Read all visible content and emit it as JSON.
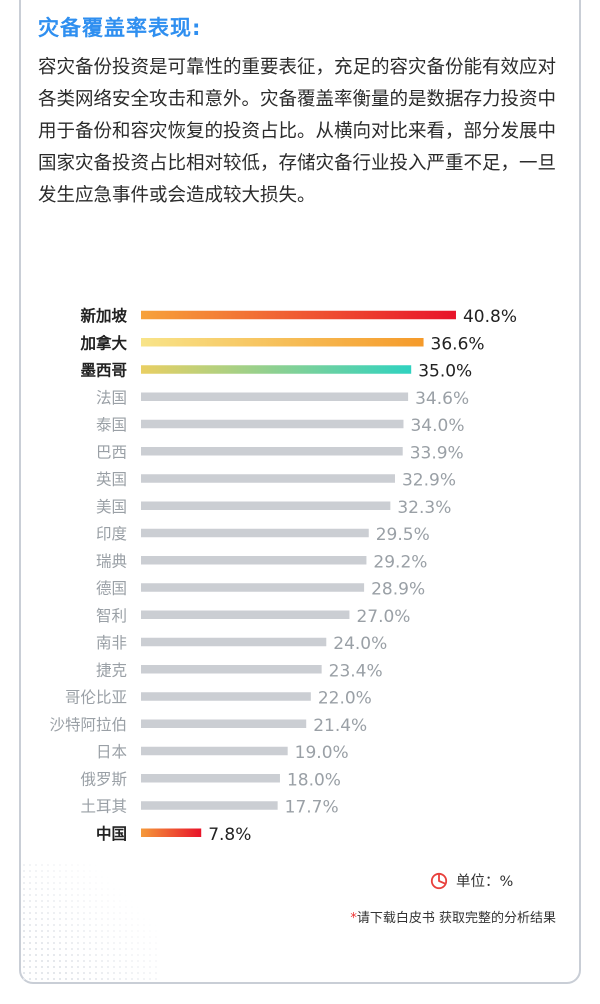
{
  "title": "灾备覆盖率表现:",
  "intro": "容灾备份投资是可靠性的重要表征，充足的容灾备份能有效应对各类网络安全攻击和意外。灾备覆盖率衡量的是数据存力投资中用于备份和容灾恢复的投资占比。从横向对比来看，部分发展中国家灾备投资占比相对较低，存储灾备行业投入严重不足，一旦发生应急事件或会造成较大损失。",
  "unit_label": "单位：%",
  "unit_icon": "pie-chart-icon",
  "footnote": {
    "star": "*",
    "text": "请下载白皮书  获取完整的分析结果"
  },
  "colors": {
    "title": "#2f8ff0",
    "bar_gray": "#cbced3",
    "label_gray": "#9aa0a6",
    "label_dark": "#222222",
    "unit_icon": "#e8403c"
  },
  "chart_data": {
    "type": "bar",
    "orientation": "horizontal",
    "xlim": [
      0,
      45
    ],
    "grid": false,
    "legend": "none",
    "categories": [
      "新加坡",
      "加拿大",
      "墨西哥",
      "法国",
      "泰国",
      "巴西",
      "英国",
      "美国",
      "印度",
      "瑞典",
      "德国",
      "智利",
      "南非",
      "捷克",
      "哥伦比亚",
      "沙特阿拉伯",
      "日本",
      "俄罗斯",
      "土耳其",
      "中国"
    ],
    "values": [
      40.8,
      36.6,
      35.0,
      34.6,
      34.0,
      33.9,
      32.9,
      32.3,
      29.5,
      29.2,
      28.9,
      27.0,
      24.0,
      23.4,
      22.0,
      21.4,
      19.0,
      18.0,
      17.7,
      7.8
    ],
    "value_labels": [
      "40.8%",
      "36.6%",
      "35.0%",
      "34.6%",
      "34.0%",
      "33.9%",
      "32.9%",
      "32.3%",
      "29.5%",
      "29.2%",
      "28.9%",
      "27.0%",
      "24.0%",
      "23.4%",
      "22.0%",
      "21.4%",
      "19.0%",
      "18.0%",
      "17.7%",
      "7.8%"
    ],
    "highlighted": [
      "新加坡",
      "加拿大",
      "墨西哥",
      "中国"
    ],
    "bar_gradients": {
      "新加坡": [
        "#f7a23a",
        "#e8132a"
      ],
      "加拿大": [
        "#f8e489",
        "#f59a2a"
      ],
      "墨西哥": [
        "#e9cf63",
        "#2fd2c0"
      ],
      "中国": [
        "#f59a3a",
        "#e8142a"
      ]
    }
  }
}
